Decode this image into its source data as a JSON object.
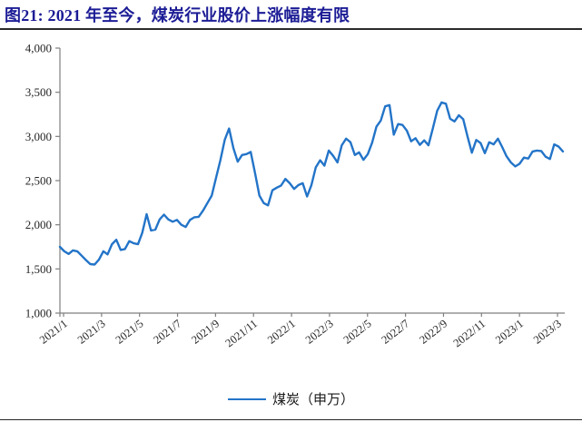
{
  "header": {
    "title": "图21:  2021 年至今，煤炭行业股价上涨幅度有限",
    "title_color": "#1c1c96"
  },
  "chart_data": {
    "type": "line",
    "title": "图21: 2021 年至今，煤炭行业股价上涨幅度有限",
    "xlabel": "",
    "ylabel": "",
    "ylim": [
      1000,
      4000
    ],
    "grid": false,
    "legend_position": "bottom",
    "axis_color": "#7f7f7f",
    "label_color": "#262626",
    "y_ticks": [
      1000,
      1500,
      2000,
      2500,
      3000,
      3500,
      4000
    ],
    "y_tick_labels": [
      "1,000",
      "1,500",
      "2,000",
      "2,500",
      "3,000",
      "3,500",
      "4,000"
    ],
    "x_tick_labels": [
      "2021/1",
      "2021/3",
      "2021/5",
      "2021/7",
      "2021/9",
      "2021/11",
      "2022/1",
      "2022/3",
      "2022/5",
      "2022/7",
      "2022/9",
      "2022/11",
      "2023/1",
      "2023/3"
    ],
    "x_unit": "weekly index points from 2021/1 to 2023/3",
    "series": [
      {
        "name": "煤炭（申万）",
        "color": "#2374c8",
        "values": [
          1750,
          1700,
          1670,
          1710,
          1700,
          1650,
          1600,
          1555,
          1550,
          1605,
          1700,
          1665,
          1780,
          1830,
          1715,
          1725,
          1815,
          1790,
          1780,
          1910,
          2120,
          1935,
          1945,
          2060,
          2115,
          2060,
          2035,
          2055,
          2000,
          1975,
          2055,
          2085,
          2090,
          2160,
          2245,
          2330,
          2530,
          2730,
          2960,
          3090,
          2870,
          2715,
          2790,
          2800,
          2825,
          2585,
          2330,
          2245,
          2220,
          2390,
          2420,
          2445,
          2520,
          2470,
          2405,
          2450,
          2470,
          2320,
          2450,
          2650,
          2730,
          2670,
          2840,
          2780,
          2705,
          2900,
          2975,
          2935,
          2790,
          2820,
          2735,
          2800,
          2930,
          3110,
          3180,
          3340,
          3355,
          3020,
          3140,
          3130,
          3065,
          2945,
          2980,
          2905,
          2955,
          2900,
          3090,
          3290,
          3385,
          3370,
          3200,
          3170,
          3240,
          3195,
          3000,
          2815,
          2960,
          2925,
          2810,
          2935,
          2910,
          2975,
          2880,
          2775,
          2705,
          2660,
          2690,
          2760,
          2750,
          2830,
          2840,
          2835,
          2770,
          2745,
          2910,
          2885,
          2830
        ]
      }
    ]
  },
  "legend": {
    "items": [
      {
        "label": "煤炭（申万）",
        "color": "#2374c8"
      }
    ]
  }
}
